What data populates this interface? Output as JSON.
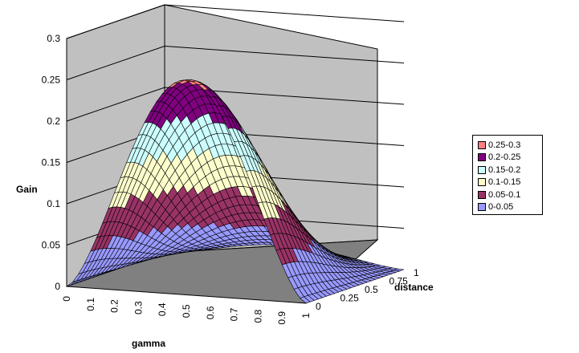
{
  "chart_data": {
    "type": "surface",
    "title": "",
    "xlabel": "gamma",
    "ylabel": "distance",
    "zlabel": "Gain",
    "x_ticks": [
      "0",
      "0.1",
      "0.2",
      "0.3",
      "0.4",
      "0.5",
      "0.6",
      "0.7",
      "0.8",
      "0.9",
      "1"
    ],
    "y_ticks": [
      "0",
      "0.25",
      "0.5",
      "0.75",
      "1"
    ],
    "z_ticks": [
      "0",
      "0.05",
      "0.1",
      "0.15",
      "0.2",
      "0.25",
      "0.3"
    ],
    "zlim": [
      0,
      0.3
    ],
    "peak": {
      "gamma": 0.5,
      "distance": 0.0,
      "gain": 0.26
    },
    "legend": [
      {
        "label": "0.25-0.3",
        "color": "#ff8080"
      },
      {
        "label": "0.2-0.25",
        "color": "#800080"
      },
      {
        "label": "0.15-0.2",
        "color": "#ccffff"
      },
      {
        "label": "0.1-0.15",
        "color": "#ffffcc"
      },
      {
        "label": "0.05-0.1",
        "color": "#993366"
      },
      {
        "label": "0-0.05",
        "color": "#9999ff"
      }
    ],
    "legend_position": "right",
    "grid": true
  }
}
